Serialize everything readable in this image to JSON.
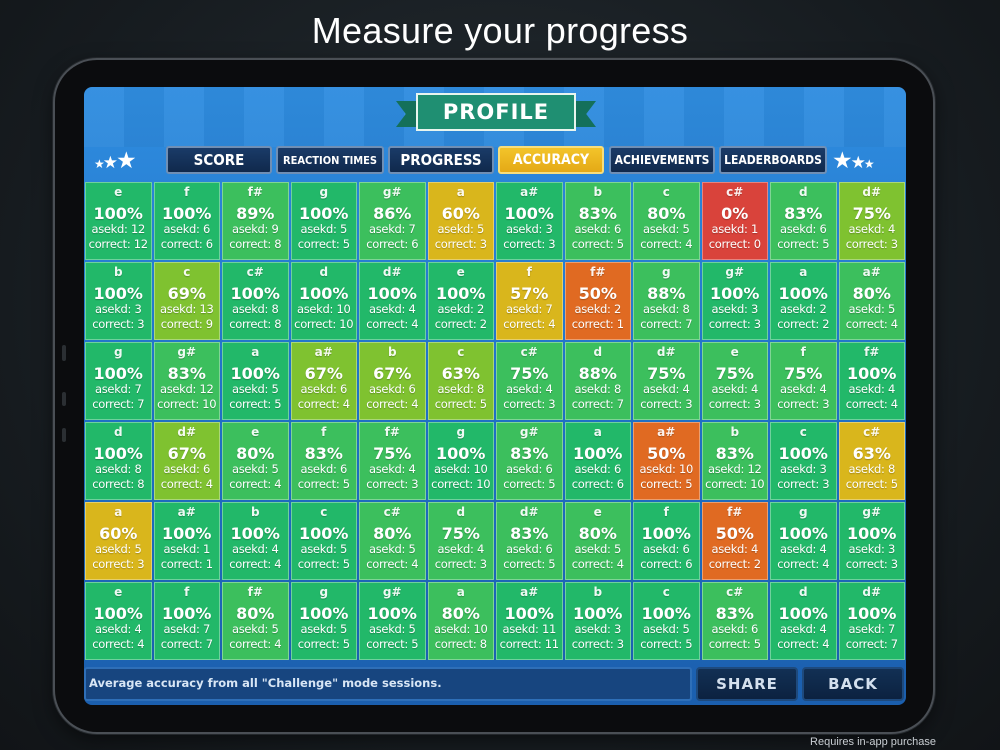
{
  "headline": "Measure your progress",
  "footnote": "Requires in-app purchase",
  "profile_title": "PROFILE",
  "tabs": [
    {
      "label": "SCORE",
      "active": false
    },
    {
      "label": "REACTION TIMES",
      "active": false
    },
    {
      "label": "PROGRESS",
      "active": false
    },
    {
      "label": "ACCURACY",
      "active": true
    },
    {
      "label": "ACHIEVEMENTS",
      "active": false
    },
    {
      "label": "LEADERBOARDS",
      "active": false
    }
  ],
  "colors": {
    "green": "#22b869",
    "green_mid": "#3cbf5d",
    "lime": "#7fc230",
    "yellow": "#d9b61c",
    "orange": "#e06a22",
    "red": "#d9433b"
  },
  "icons": {
    "star": "star-icon"
  },
  "grid_rows": [
    [
      {
        "note": "e",
        "pct": "100%",
        "asked": "asekd: 12",
        "correct": "correct: 12",
        "level": "green"
      },
      {
        "note": "f",
        "pct": "100%",
        "asked": "asekd: 6",
        "correct": "correct: 6",
        "level": "green"
      },
      {
        "note": "f#",
        "pct": "89%",
        "asked": "asekd: 9",
        "correct": "correct: 8",
        "level": "green_mid"
      },
      {
        "note": "g",
        "pct": "100%",
        "asked": "asekd: 5",
        "correct": "correct: 5",
        "level": "green"
      },
      {
        "note": "g#",
        "pct": "86%",
        "asked": "asekd: 7",
        "correct": "correct: 6",
        "level": "green_mid"
      },
      {
        "note": "a",
        "pct": "60%",
        "asked": "asekd: 5",
        "correct": "correct: 3",
        "level": "yellow"
      },
      {
        "note": "a#",
        "pct": "100%",
        "asked": "asekd: 3",
        "correct": "correct: 3",
        "level": "green"
      },
      {
        "note": "b",
        "pct": "83%",
        "asked": "asekd: 6",
        "correct": "correct: 5",
        "level": "green_mid"
      },
      {
        "note": "c",
        "pct": "80%",
        "asked": "asekd: 5",
        "correct": "correct: 4",
        "level": "green_mid"
      },
      {
        "note": "c#",
        "pct": "0%",
        "asked": "asekd: 1",
        "correct": "correct: 0",
        "level": "red"
      },
      {
        "note": "d",
        "pct": "83%",
        "asked": "asekd: 6",
        "correct": "correct: 5",
        "level": "green_mid"
      },
      {
        "note": "d#",
        "pct": "75%",
        "asked": "asekd: 4",
        "correct": "correct: 3",
        "level": "lime"
      }
    ],
    [
      {
        "note": "b",
        "pct": "100%",
        "asked": "asekd: 3",
        "correct": "correct: 3",
        "level": "green"
      },
      {
        "note": "c",
        "pct": "69%",
        "asked": "asekd: 13",
        "correct": "correct: 9",
        "level": "lime"
      },
      {
        "note": "c#",
        "pct": "100%",
        "asked": "asekd: 8",
        "correct": "correct: 8",
        "level": "green"
      },
      {
        "note": "d",
        "pct": "100%",
        "asked": "asekd: 10",
        "correct": "correct: 10",
        "level": "green"
      },
      {
        "note": "d#",
        "pct": "100%",
        "asked": "asekd: 4",
        "correct": "correct: 4",
        "level": "green"
      },
      {
        "note": "e",
        "pct": "100%",
        "asked": "asekd: 2",
        "correct": "correct: 2",
        "level": "green"
      },
      {
        "note": "f",
        "pct": "57%",
        "asked": "asekd: 7",
        "correct": "correct: 4",
        "level": "yellow"
      },
      {
        "note": "f#",
        "pct": "50%",
        "asked": "asekd: 2",
        "correct": "correct: 1",
        "level": "orange"
      },
      {
        "note": "g",
        "pct": "88%",
        "asked": "asekd: 8",
        "correct": "correct: 7",
        "level": "green_mid"
      },
      {
        "note": "g#",
        "pct": "100%",
        "asked": "asekd: 3",
        "correct": "correct: 3",
        "level": "green"
      },
      {
        "note": "a",
        "pct": "100%",
        "asked": "asekd: 2",
        "correct": "correct: 2",
        "level": "green"
      },
      {
        "note": "a#",
        "pct": "80%",
        "asked": "asekd: 5",
        "correct": "correct: 4",
        "level": "green_mid"
      }
    ],
    [
      {
        "note": "g",
        "pct": "100%",
        "asked": "asekd: 7",
        "correct": "correct: 7",
        "level": "green"
      },
      {
        "note": "g#",
        "pct": "83%",
        "asked": "asekd: 12",
        "correct": "correct: 10",
        "level": "green_mid"
      },
      {
        "note": "a",
        "pct": "100%",
        "asked": "asekd: 5",
        "correct": "correct: 5",
        "level": "green"
      },
      {
        "note": "a#",
        "pct": "67%",
        "asked": "asekd: 6",
        "correct": "correct: 4",
        "level": "lime"
      },
      {
        "note": "b",
        "pct": "67%",
        "asked": "asekd: 6",
        "correct": "correct: 4",
        "level": "lime"
      },
      {
        "note": "c",
        "pct": "63%",
        "asked": "asekd: 8",
        "correct": "correct: 5",
        "level": "lime"
      },
      {
        "note": "c#",
        "pct": "75%",
        "asked": "asekd: 4",
        "correct": "correct: 3",
        "level": "green_mid"
      },
      {
        "note": "d",
        "pct": "88%",
        "asked": "asekd: 8",
        "correct": "correct: 7",
        "level": "green_mid"
      },
      {
        "note": "d#",
        "pct": "75%",
        "asked": "asekd: 4",
        "correct": "correct: 3",
        "level": "green_mid"
      },
      {
        "note": "e",
        "pct": "75%",
        "asked": "asekd: 4",
        "correct": "correct: 3",
        "level": "green_mid"
      },
      {
        "note": "f",
        "pct": "75%",
        "asked": "asekd: 4",
        "correct": "correct: 3",
        "level": "green_mid"
      },
      {
        "note": "f#",
        "pct": "100%",
        "asked": "asekd: 4",
        "correct": "correct: 4",
        "level": "green"
      }
    ],
    [
      {
        "note": "d",
        "pct": "100%",
        "asked": "asekd: 8",
        "correct": "correct: 8",
        "level": "green"
      },
      {
        "note": "d#",
        "pct": "67%",
        "asked": "asekd: 6",
        "correct": "correct: 4",
        "level": "lime"
      },
      {
        "note": "e",
        "pct": "80%",
        "asked": "asekd: 5",
        "correct": "correct: 4",
        "level": "green_mid"
      },
      {
        "note": "f",
        "pct": "83%",
        "asked": "asekd: 6",
        "correct": "correct: 5",
        "level": "green_mid"
      },
      {
        "note": "f#",
        "pct": "75%",
        "asked": "asekd: 4",
        "correct": "correct: 3",
        "level": "green_mid"
      },
      {
        "note": "g",
        "pct": "100%",
        "asked": "asekd: 10",
        "correct": "correct: 10",
        "level": "green"
      },
      {
        "note": "g#",
        "pct": "83%",
        "asked": "asekd: 6",
        "correct": "correct: 5",
        "level": "green_mid"
      },
      {
        "note": "a",
        "pct": "100%",
        "asked": "asekd: 6",
        "correct": "correct: 6",
        "level": "green"
      },
      {
        "note": "a#",
        "pct": "50%",
        "asked": "asekd: 10",
        "correct": "correct: 5",
        "level": "orange"
      },
      {
        "note": "b",
        "pct": "83%",
        "asked": "asekd: 12",
        "correct": "correct: 10",
        "level": "green_mid"
      },
      {
        "note": "c",
        "pct": "100%",
        "asked": "asekd: 3",
        "correct": "correct: 3",
        "level": "green"
      },
      {
        "note": "c#",
        "pct": "63%",
        "asked": "asekd: 8",
        "correct": "correct: 5",
        "level": "yellow"
      }
    ],
    [
      {
        "note": "a",
        "pct": "60%",
        "asked": "asekd: 5",
        "correct": "correct: 3",
        "level": "yellow"
      },
      {
        "note": "a#",
        "pct": "100%",
        "asked": "asekd: 1",
        "correct": "correct: 1",
        "level": "green"
      },
      {
        "note": "b",
        "pct": "100%",
        "asked": "asekd: 4",
        "correct": "correct: 4",
        "level": "green"
      },
      {
        "note": "c",
        "pct": "100%",
        "asked": "asekd: 5",
        "correct": "correct: 5",
        "level": "green"
      },
      {
        "note": "c#",
        "pct": "80%",
        "asked": "asekd: 5",
        "correct": "correct: 4",
        "level": "green_mid"
      },
      {
        "note": "d",
        "pct": "75%",
        "asked": "asekd: 4",
        "correct": "correct: 3",
        "level": "green_mid"
      },
      {
        "note": "d#",
        "pct": "83%",
        "asked": "asekd: 6",
        "correct": "correct: 5",
        "level": "green_mid"
      },
      {
        "note": "e",
        "pct": "80%",
        "asked": "asekd: 5",
        "correct": "correct: 4",
        "level": "green_mid"
      },
      {
        "note": "f",
        "pct": "100%",
        "asked": "asekd: 6",
        "correct": "correct: 6",
        "level": "green"
      },
      {
        "note": "f#",
        "pct": "50%",
        "asked": "asekd: 4",
        "correct": "correct: 2",
        "level": "orange"
      },
      {
        "note": "g",
        "pct": "100%",
        "asked": "asekd: 4",
        "correct": "correct: 4",
        "level": "green"
      },
      {
        "note": "g#",
        "pct": "100%",
        "asked": "asekd: 3",
        "correct": "correct: 3",
        "level": "green"
      }
    ],
    [
      {
        "note": "e",
        "pct": "100%",
        "asked": "asekd: 4",
        "correct": "correct: 4",
        "level": "green"
      },
      {
        "note": "f",
        "pct": "100%",
        "asked": "asekd: 7",
        "correct": "correct: 7",
        "level": "green"
      },
      {
        "note": "f#",
        "pct": "80%",
        "asked": "asekd: 5",
        "correct": "correct: 4",
        "level": "green_mid"
      },
      {
        "note": "g",
        "pct": "100%",
        "asked": "asekd: 5",
        "correct": "correct: 5",
        "level": "green"
      },
      {
        "note": "g#",
        "pct": "100%",
        "asked": "asekd: 5",
        "correct": "correct: 5",
        "level": "green"
      },
      {
        "note": "a",
        "pct": "80%",
        "asked": "asekd: 10",
        "correct": "correct: 8",
        "level": "green_mid"
      },
      {
        "note": "a#",
        "pct": "100%",
        "asked": "asekd: 11",
        "correct": "correct: 11",
        "level": "green"
      },
      {
        "note": "b",
        "pct": "100%",
        "asked": "asekd: 3",
        "correct": "correct: 3",
        "level": "green"
      },
      {
        "note": "c",
        "pct": "100%",
        "asked": "asekd: 5",
        "correct": "correct: 5",
        "level": "green"
      },
      {
        "note": "c#",
        "pct": "83%",
        "asked": "asekd: 6",
        "correct": "correct: 5",
        "level": "green_mid"
      },
      {
        "note": "d",
        "pct": "100%",
        "asked": "asekd: 4",
        "correct": "correct: 4",
        "level": "green"
      },
      {
        "note": "d#",
        "pct": "100%",
        "asked": "asekd: 7",
        "correct": "correct: 7",
        "level": "green"
      }
    ]
  ],
  "info_text": "Average accuracy from all \"Challenge\" mode sessions.",
  "buttons": {
    "share": "SHARE",
    "back": "BACK"
  }
}
